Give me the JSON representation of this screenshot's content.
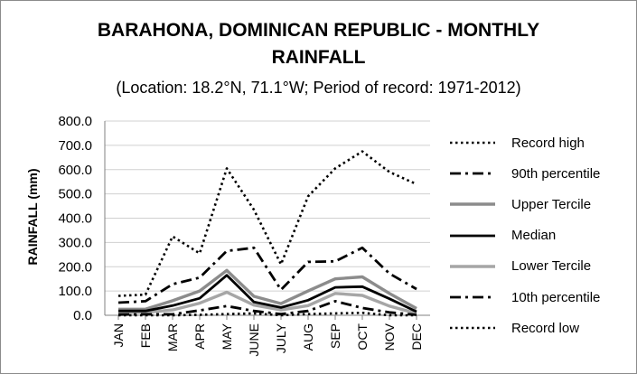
{
  "chart_data": {
    "type": "line",
    "title_lines": [
      "BARAHONA, DOMINICAN REPUBLIC - MONTHLY",
      "RAINFALL"
    ],
    "subtitle": "(Location: 18.2°N, 71.1°W; Period of record: 1971-2012)",
    "ylabel": "RAINFALL (mm)",
    "xlabel": "",
    "ylim": [
      0,
      800
    ],
    "ytick_step": 100,
    "ytick_labels": [
      "0.0",
      "100.0",
      "200.0",
      "300.0",
      "400.0",
      "500.0",
      "600.0",
      "700.0",
      "800.0"
    ],
    "grid": true,
    "legend_position": "right",
    "categories": [
      "JAN",
      "FEB",
      "MAR",
      "APR",
      "MAY",
      "JUNE",
      "JULY",
      "AUG",
      "SEP",
      "OCT",
      "NOV",
      "DEC"
    ],
    "series": [
      {
        "name": "Record high",
        "style": "dotted",
        "color": "#000000",
        "values": [
          80,
          85,
          325,
          255,
          605,
          435,
          210,
          490,
          605,
          675,
          590,
          540
        ]
      },
      {
        "name": "90th percentile",
        "style": "dashdot",
        "color": "#000000",
        "values": [
          52,
          58,
          128,
          155,
          265,
          278,
          105,
          220,
          222,
          278,
          172,
          108
        ]
      },
      {
        "name": "Upper Tercile",
        "style": "solid-thick",
        "color": "#8c8c8c",
        "values": [
          25,
          25,
          60,
          100,
          185,
          78,
          48,
          100,
          150,
          158,
          90,
          28
        ]
      },
      {
        "name": "Median",
        "style": "solid",
        "color": "#000000",
        "values": [
          18,
          18,
          40,
          70,
          165,
          55,
          32,
          62,
          115,
          118,
          68,
          15
        ]
      },
      {
        "name": "Lower Tercile",
        "style": "solid-thick",
        "color": "#a6a6a6",
        "values": [
          12,
          12,
          22,
          50,
          95,
          42,
          22,
          40,
          90,
          82,
          38,
          8
        ]
      },
      {
        "name": "10th percentile",
        "style": "dashdot",
        "color": "#000000",
        "values": [
          3,
          4,
          4,
          20,
          38,
          18,
          5,
          18,
          58,
          30,
          12,
          2
        ]
      },
      {
        "name": "Record low",
        "style": "dotted",
        "color": "#000000",
        "values": [
          0,
          0,
          0,
          2,
          5,
          8,
          0,
          5,
          8,
          10,
          0,
          0
        ]
      }
    ]
  }
}
